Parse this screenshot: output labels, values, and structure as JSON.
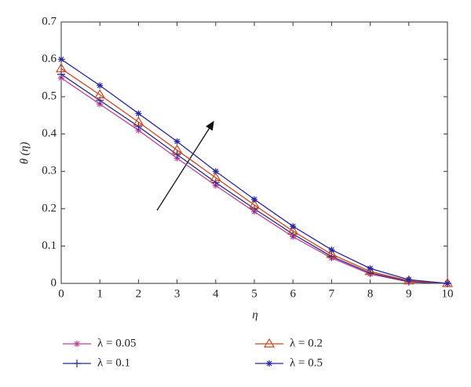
{
  "chart_data": {
    "type": "line",
    "xlabel": "η",
    "ylabel": "θ (η)",
    "x": [
      0,
      1,
      2,
      3,
      4,
      5,
      6,
      7,
      8,
      9,
      10
    ],
    "xlim": [
      0,
      10
    ],
    "xticks": [
      0,
      1,
      2,
      3,
      4,
      5,
      6,
      7,
      8,
      9,
      10
    ],
    "ylim": [
      0,
      0.7
    ],
    "yticks": [
      0,
      0.1,
      0.2,
      0.3,
      0.4,
      0.5,
      0.6,
      0.7
    ],
    "series": [
      {
        "name": "λ = 0.05",
        "color": "#c0409a",
        "marker": "star",
        "values": [
          0.55,
          0.48,
          0.41,
          0.335,
          0.262,
          0.192,
          0.125,
          0.068,
          0.025,
          0.004,
          0
        ]
      },
      {
        "name": "λ = 0.1",
        "color": "#2a2a8c",
        "marker": "plus",
        "values": [
          0.56,
          0.49,
          0.42,
          0.345,
          0.27,
          0.2,
          0.132,
          0.072,
          0.028,
          0.005,
          0
        ]
      },
      {
        "name": "λ = 0.2",
        "color": "#d0451b",
        "marker": "triangle",
        "values": [
          0.575,
          0.505,
          0.432,
          0.357,
          0.283,
          0.21,
          0.14,
          0.078,
          0.032,
          0.007,
          0
        ]
      },
      {
        "name": "λ = 0.5",
        "color": "#2626a0",
        "marker": "star",
        "values": [
          0.6,
          0.53,
          0.455,
          0.38,
          0.3,
          0.225,
          0.153,
          0.09,
          0.04,
          0.01,
          0
        ]
      }
    ]
  }
}
